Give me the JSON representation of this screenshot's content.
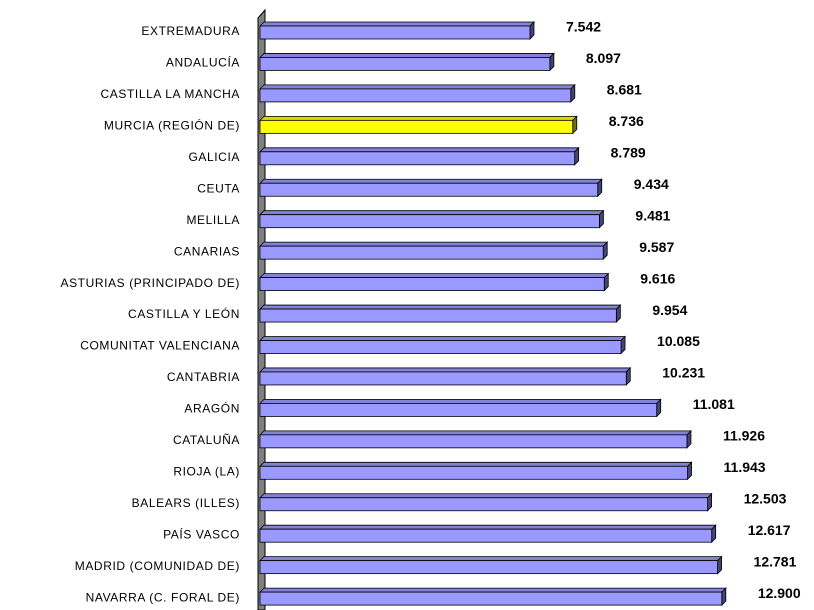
{
  "chart_data": {
    "type": "bar",
    "orientation": "horizontal",
    "categories": [
      "EXTREMADURA",
      "ANDALUCÍA",
      "CASTILLA LA MANCHA",
      "MURCIA (REGIÓN DE)",
      "GALICIA",
      "CEUTA",
      "MELILLA",
      "CANARIAS",
      "ASTURIAS (PRINCIPADO DE)",
      "CASTILLA Y LEÓN",
      "COMUNITAT VALENCIANA",
      "CANTABRIA",
      "ARAGÓN",
      "CATALUÑA",
      "RIOJA (LA)",
      "BALEARS (ILLES)",
      "PAÍS VASCO",
      "MADRID (COMUNIDAD DE)",
      "NAVARRA (C. FORAL DE)"
    ],
    "values": [
      7542,
      8097,
      8681,
      8736,
      8789,
      9434,
      9481,
      9587,
      9616,
      9954,
      10085,
      10231,
      11081,
      11926,
      11943,
      12503,
      12617,
      12781,
      12900
    ],
    "value_labels": [
      "7.542",
      "8.097",
      "8.681",
      "8.736",
      "8.789",
      "9.434",
      "9.481",
      "9.587",
      "9.616",
      "9.954",
      "10.085",
      "10.231",
      "11.081",
      "11.926",
      "11.943",
      "12.503",
      "12.617",
      "12.781",
      "12.900"
    ],
    "colors": [
      "#9999ff",
      "#9999ff",
      "#9999ff",
      "#ffff00",
      "#9999ff",
      "#9999ff",
      "#9999ff",
      "#9999ff",
      "#9999ff",
      "#9999ff",
      "#9999ff",
      "#9999ff",
      "#9999ff",
      "#9999ff",
      "#9999ff",
      "#9999ff",
      "#9999ff",
      "#9999ff",
      "#9999ff"
    ],
    "xlim": [
      0,
      15000
    ]
  }
}
